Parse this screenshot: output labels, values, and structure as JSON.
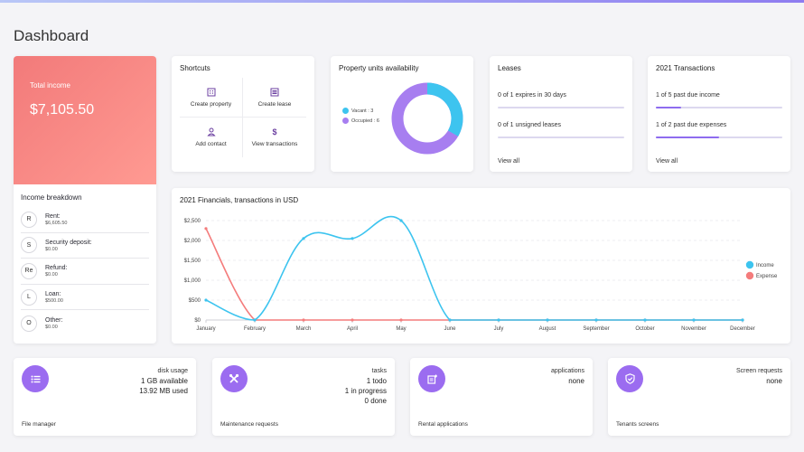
{
  "page": {
    "title": "Dashboard"
  },
  "income": {
    "label": "Total income",
    "value": "$7,105.50",
    "breakdown_title": "Income breakdown",
    "items": [
      {
        "initial": "R",
        "name": "Rent:",
        "amount": "$6,605.50"
      },
      {
        "initial": "S",
        "name": "Security deposit:",
        "amount": "$0.00"
      },
      {
        "initial": "Re",
        "name": "Refund:",
        "amount": "$0.00"
      },
      {
        "initial": "L",
        "name": "Loan:",
        "amount": "$500.00"
      },
      {
        "initial": "O",
        "name": "Other:",
        "amount": "$0.00"
      }
    ]
  },
  "shortcuts": {
    "title": "Shortcuts",
    "items": [
      {
        "label": "Create property",
        "icon": "building-icon"
      },
      {
        "label": "Create lease",
        "icon": "document-list-icon"
      },
      {
        "label": "Add contact",
        "icon": "person-icon"
      },
      {
        "label": "View transactions",
        "icon": "dollar-icon"
      }
    ]
  },
  "availability": {
    "title": "Property units availability",
    "vacant_label": "Vacant : 3",
    "occupied_label": "Occupied : 6",
    "vacant": 3,
    "occupied": 6,
    "vacant_color": "#3dc4ef",
    "occupied_color": "#a77ef0"
  },
  "leases": {
    "title": "Leases",
    "line1": "0 of 1 expires in 30 days",
    "line1_fraction": 0,
    "line2": "0 of 1 unsigned leases",
    "line2_fraction": 0,
    "view_all": "View all"
  },
  "transactions": {
    "title": "2021 Transactions",
    "line1": "1 of 5 past due income",
    "line1_fraction": 0.2,
    "line2": "1 of 2 past due expenses",
    "line2_fraction": 0.5,
    "view_all": "View all"
  },
  "financials": {
    "title": "2021 Financials, transactions in USD"
  },
  "chart_data": {
    "type": "line",
    "title": "2021 Financials, transactions in USD",
    "categories": [
      "January",
      "February",
      "March",
      "April",
      "May",
      "June",
      "July",
      "August",
      "September",
      "October",
      "November",
      "December"
    ],
    "y_ticks": [
      "$0",
      "$500",
      "$1,000",
      "$1,500",
      "$2,000",
      "$2,500"
    ],
    "ylim": [
      0,
      2500
    ],
    "legend_position": "right",
    "series": [
      {
        "name": "Income",
        "color": "#3dc4ef",
        "values": [
          500,
          0,
          2050,
          2050,
          2500,
          0,
          0,
          0,
          0,
          0,
          0,
          0
        ]
      },
      {
        "name": "Expense",
        "color": "#f47c7c",
        "values": [
          2300,
          0,
          0,
          0,
          0,
          0,
          0,
          0,
          0,
          0,
          0,
          0
        ]
      }
    ],
    "grid": true
  },
  "bottom": [
    {
      "icon": "list-icon",
      "label": "File manager",
      "lines": [
        "disk usage",
        "1 GB available",
        "13.92 MB used"
      ]
    },
    {
      "icon": "tools-icon",
      "label": "Maintenance requests",
      "lines": [
        "tasks",
        "1 todo",
        "1 in progress",
        "0 done"
      ]
    },
    {
      "icon": "document-add-icon",
      "label": "Rental applications",
      "lines": [
        "applications",
        "none"
      ]
    },
    {
      "icon": "shield-check-icon",
      "label": "Tenants screens",
      "lines": [
        "Screen requests",
        "none"
      ]
    }
  ]
}
